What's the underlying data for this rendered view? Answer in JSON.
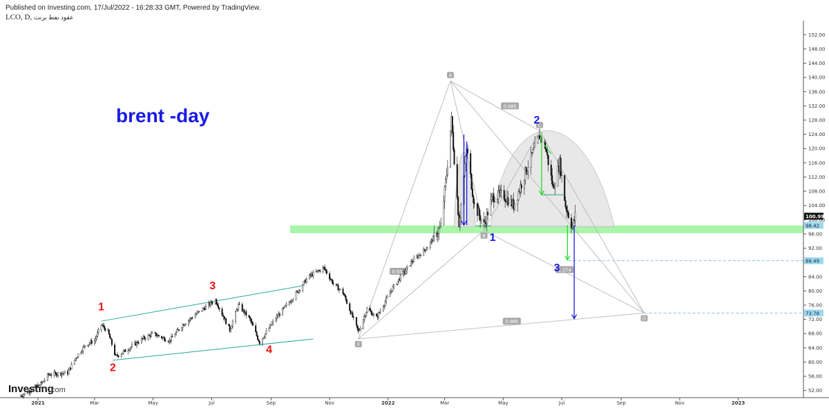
{
  "header": {
    "published": "Published on Investing.com, 17/Jul/2022 - 16:28:33 GMT, Powered by TradingView.",
    "symbol": "LCO, D",
    "symbol_ar": "عقود نفط برنت"
  },
  "watermark": {
    "brand": "Investing",
    "suffix": ".com"
  },
  "chart_data": {
    "type": "candlestick",
    "title": "brent -day",
    "ylim": [
      50,
      154
    ],
    "y_ticks": [
      52,
      56,
      60,
      64,
      68,
      72,
      76,
      80,
      84,
      88,
      92,
      96,
      100,
      104,
      108,
      112,
      116,
      120,
      124,
      128,
      132,
      136,
      140,
      144,
      148,
      152
    ],
    "y_tick_labels": [
      "52.00",
      "56.00",
      "60.00",
      "64.00",
      "68.00",
      "72.00",
      "76.00",
      "80.00",
      "84.00",
      "88.00",
      "92.00",
      "96.00",
      "100.00",
      "104.00",
      "108.00",
      "112.00",
      "116.00",
      "120.00",
      "124.00",
      "128.00",
      "132.00",
      "136.00",
      "140.00",
      "144.00",
      "148.00",
      "152.00"
    ],
    "x_labels": [
      {
        "label": "2021",
        "date": "2021-01-01"
      },
      {
        "label": "Mar",
        "date": "2021-03-01"
      },
      {
        "label": "May",
        "date": "2021-05-01"
      },
      {
        "label": "Jul",
        "date": "2021-07-01"
      },
      {
        "label": "Sep",
        "date": "2021-09-01"
      },
      {
        "label": "Nov",
        "date": "2021-11-01"
      },
      {
        "label": "2022",
        "date": "2022-01-01"
      },
      {
        "label": "Mar",
        "date": "2022-03-01"
      },
      {
        "label": "May",
        "date": "2022-05-01"
      },
      {
        "label": "Jul",
        "date": "2022-07-01"
      },
      {
        "label": "Sep",
        "date": "2022-09-01"
      },
      {
        "label": "Nov",
        "date": "2022-11-01"
      },
      {
        "label": "2023",
        "date": "2023-01-01"
      }
    ],
    "x_range": [
      "2020-12-14",
      "2023-03-10"
    ],
    "price_path": [
      [
        "2020-12-14",
        50.5
      ],
      [
        "2021-01-05",
        54.0
      ],
      [
        "2021-01-12",
        56.5
      ],
      [
        "2021-02-01",
        57.0
      ],
      [
        "2021-02-10",
        61.5
      ],
      [
        "2021-02-20",
        65.0
      ],
      [
        "2021-03-01",
        66.0
      ],
      [
        "2021-03-08",
        70.5
      ],
      [
        "2021-03-15",
        68.5
      ],
      [
        "2021-03-23",
        61.5
      ],
      [
        "2021-04-01",
        63.0
      ],
      [
        "2021-04-20",
        66.5
      ],
      [
        "2021-05-01",
        68.0
      ],
      [
        "2021-05-18",
        66.0
      ],
      [
        "2021-06-01",
        70.5
      ],
      [
        "2021-06-15",
        73.5
      ],
      [
        "2021-07-05",
        77.5
      ],
      [
        "2021-07-20",
        69.0
      ],
      [
        "2021-07-29",
        76.0
      ],
      [
        "2021-08-10",
        72.0
      ],
      [
        "2021-08-20",
        65.5
      ],
      [
        "2021-09-05",
        72.0
      ],
      [
        "2021-09-25",
        78.5
      ],
      [
        "2021-10-10",
        84.0
      ],
      [
        "2021-10-26",
        86.5
      ],
      [
        "2021-11-05",
        82.0
      ],
      [
        "2021-11-15",
        79.5
      ],
      [
        "2021-11-26",
        72.0
      ],
      [
        "2021-12-01",
        68.5
      ],
      [
        "2021-12-10",
        75.0
      ],
      [
        "2021-12-20",
        72.5
      ],
      [
        "2022-01-05",
        80.5
      ],
      [
        "2022-01-25",
        88.0
      ],
      [
        "2022-02-10",
        92.0
      ],
      [
        "2022-02-25",
        98.0
      ],
      [
        "2022-03-03",
        113.0
      ],
      [
        "2022-03-08",
        128.0
      ],
      [
        "2022-03-16",
        99.0
      ],
      [
        "2022-03-24",
        120.0
      ],
      [
        "2022-04-01",
        104.0
      ],
      [
        "2022-04-11",
        98.5
      ],
      [
        "2022-04-20",
        106.5
      ],
      [
        "2022-05-01",
        107.0
      ],
      [
        "2022-05-12",
        104.0
      ],
      [
        "2022-05-25",
        114.0
      ],
      [
        "2022-06-08",
        123.5
      ],
      [
        "2022-06-14",
        120.5
      ],
      [
        "2022-06-22",
        109.0
      ],
      [
        "2022-06-29",
        116.0
      ],
      [
        "2022-07-05",
        104.0
      ],
      [
        "2022-07-12",
        98.0
      ],
      [
        "2022-07-15",
        100.99
      ]
    ],
    "current_price": 100.99,
    "price_tags": [
      {
        "value": 100.99,
        "label": "100.99",
        "kind": "last"
      },
      {
        "value": 98.42,
        "label": "98.42",
        "kind": "support"
      },
      {
        "value": 88.49,
        "label": "88.49",
        "kind": "target"
      },
      {
        "value": 73.78,
        "label": "73.78",
        "kind": "target"
      }
    ],
    "support_zone": [
      96.2,
      98.4
    ],
    "harmonic_pattern": {
      "points": [
        {
          "label": "X",
          "date": "2021-12-01",
          "value": 66.5
        },
        {
          "label": "A",
          "date": "2022-03-07",
          "value": 139.0
        },
        {
          "label": "B",
          "date": "2022-04-11",
          "value": 97.0
        },
        {
          "label": "C",
          "date": "2022-06-08",
          "value": 125.0
        },
        {
          "label": "D",
          "date": "2022-09-25",
          "value": 73.78
        }
      ],
      "ratios": [
        {
          "label": "0.554",
          "date": "2022-01-12",
          "value": 85.5
        },
        {
          "label": "0.685",
          "date": "2022-05-08",
          "value": 132.0
        },
        {
          "label": "0.885",
          "date": "2022-05-10",
          "value": 71.5
        },
        {
          "label": "1.274",
          "date": "2022-07-04",
          "value": 86.0
        }
      ]
    },
    "wave_labels_left": [
      {
        "label": "1",
        "date": "2021-03-08",
        "value": 74.5
      },
      {
        "label": "2",
        "date": "2021-03-20",
        "value": 57.5
      },
      {
        "label": "3",
        "date": "2021-07-02",
        "value": 80.5
      },
      {
        "label": "4",
        "date": "2021-08-30",
        "value": 62.5
      }
    ],
    "wave_labels_right": [
      {
        "label": "1",
        "date": "2022-04-20",
        "value": 94.0
      },
      {
        "label": "2",
        "date": "2022-06-05",
        "value": 127.0
      },
      {
        "label": "3",
        "date": "2022-06-26",
        "value": 85.5
      }
    ],
    "colors": {
      "wave_left": "#ee1111",
      "wave_right": "#1a1ae6",
      "title": "#1a1ae6",
      "channel": "#26a69a",
      "pattern_line": "#b8b8b8",
      "pattern_fill": "#e4e4e4",
      "support_zone": "#8ef28e",
      "green_arrow": "#22dd22",
      "blue_arrow": "#1a1ae6",
      "tag_blue": "#9fd8ec",
      "tag_last": "#111111"
    }
  }
}
